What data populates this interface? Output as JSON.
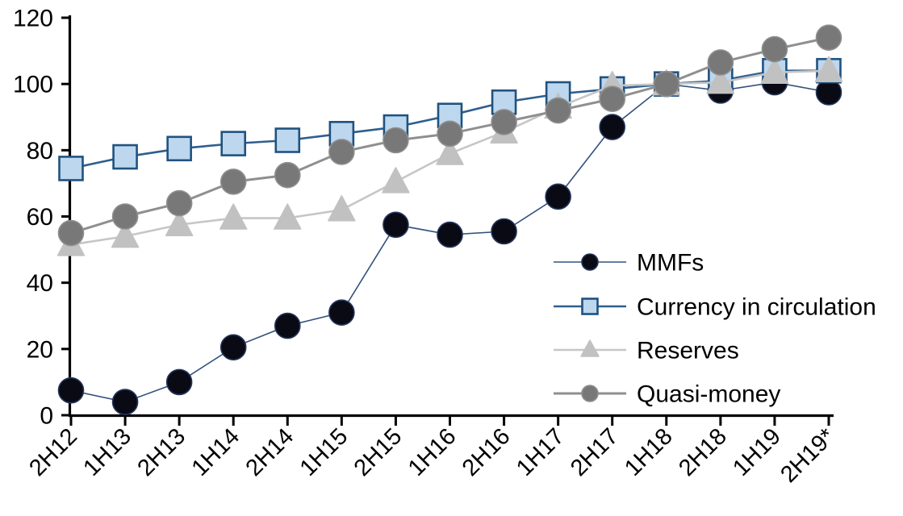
{
  "chart_data": {
    "type": "line",
    "title": "",
    "xlabel": "",
    "ylabel": "",
    "categories": [
      "2H12",
      "1H13",
      "2H13",
      "1H14",
      "2H14",
      "1H15",
      "2H15",
      "1H16",
      "2H16",
      "1H17",
      "2H17",
      "1H18",
      "2H18",
      "1H19",
      "2H19*"
    ],
    "series": [
      {
        "name": "MMFs",
        "values": [
          7.5,
          4,
          10,
          20.5,
          27,
          31,
          57.5,
          54.5,
          55.5,
          66,
          87,
          100,
          98,
          100.5,
          97.5
        ],
        "marker": "circle",
        "line_color": "#33527E",
        "line_width": 1.6,
        "marker_fill": "#0A0A14",
        "marker_stroke": "#24355C",
        "marker_size": 31
      },
      {
        "name": "Currency in circulation",
        "values": [
          74.5,
          78,
          80.5,
          82,
          83,
          85,
          87,
          90.5,
          94.5,
          97,
          98.5,
          100,
          101,
          104,
          104
        ],
        "marker": "square",
        "line_color": "#2E5F8F",
        "line_width": 2.6,
        "marker_fill": "#BDD7EE",
        "marker_stroke": "#20527F",
        "marker_size": 29
      },
      {
        "name": "Reserves",
        "values": [
          51.5,
          54,
          57.5,
          59.5,
          59.5,
          62,
          70.5,
          79,
          85.5,
          93,
          99.5,
          100,
          100.5,
          103.5,
          104
        ],
        "marker": "triangle",
        "line_color": "#C6C6C6",
        "line_width": 2.6,
        "marker_fill": "#C1C1C1",
        "marker_stroke": "#C1C1C1",
        "marker_size": 33
      },
      {
        "name": "Quasi-money",
        "values": [
          55,
          60,
          64,
          70.5,
          72.5,
          79.5,
          83,
          85,
          88.5,
          92,
          95.5,
          100,
          106.5,
          110.5,
          114
        ],
        "marker": "circle",
        "line_color": "#8F8F8F",
        "line_width": 3,
        "marker_fill": "#787878",
        "marker_stroke": "#8F8F8F",
        "marker_size": 31
      }
    ],
    "ylim": [
      0,
      120
    ],
    "ytick_step": 20,
    "yticks": [
      0,
      20,
      40,
      60,
      80,
      100,
      120
    ],
    "grid": false,
    "legend_position": "inside-right-middle",
    "axis_color": "#000000"
  }
}
